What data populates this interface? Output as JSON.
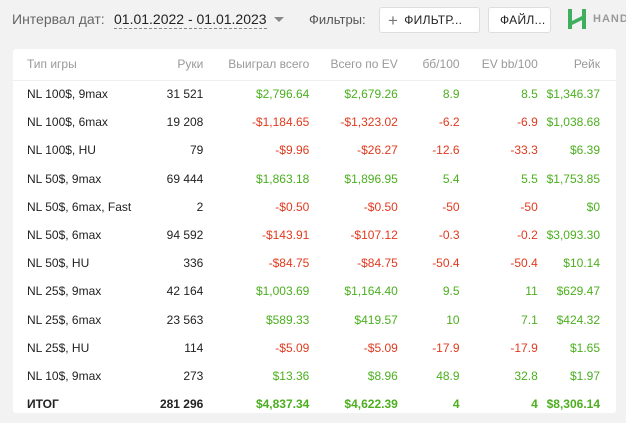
{
  "header": {
    "date_label": "Интервал дат:",
    "date_range": "01.01.2022 - 01.01.2023",
    "filters_label": "Фильтры:",
    "filter_button": "ФИЛЬТР...",
    "files_button": "ФАЙЛ...",
    "logo_text": "HAND",
    "logo_icon": "hand2note-logo-icon",
    "colors": {
      "positive": "#4caf1f",
      "negative": "#e03a1f"
    }
  },
  "table": {
    "columns": [
      "Тип игры",
      "Руки",
      "Выиграл всего",
      "Всего по EV",
      "бб/100",
      "EV bb/100",
      "Рейк"
    ],
    "rows": [
      {
        "game": "NL 100$, 9max",
        "hands": "31 521",
        "won": "$2,796.64",
        "ev": "$2,679.26",
        "bb100": "8.9",
        "evbb100": "8.5",
        "rake": "$1,346.37"
      },
      {
        "game": "NL 100$, 6max",
        "hands": "19 208",
        "won": "-$1,184.65",
        "ev": "-$1,323.02",
        "bb100": "-6.2",
        "evbb100": "-6.9",
        "rake": "$1,038.68"
      },
      {
        "game": "NL 100$, HU",
        "hands": "79",
        "won": "-$9.96",
        "ev": "-$26.27",
        "bb100": "-12.6",
        "evbb100": "-33.3",
        "rake": "$6.39"
      },
      {
        "game": "NL 50$, 9max",
        "hands": "69 444",
        "won": "$1,863.18",
        "ev": "$1,896.95",
        "bb100": "5.4",
        "evbb100": "5.5",
        "rake": "$1,753.85"
      },
      {
        "game": "NL 50$, 6max, Fast",
        "hands": "2",
        "won": "-$0.50",
        "ev": "-$0.50",
        "bb100": "-50",
        "evbb100": "-50",
        "rake": "$0"
      },
      {
        "game": "NL 50$, 6max",
        "hands": "94 592",
        "won": "-$143.91",
        "ev": "-$107.12",
        "bb100": "-0.3",
        "evbb100": "-0.2",
        "rake": "$3,093.30"
      },
      {
        "game": "NL 50$, HU",
        "hands": "336",
        "won": "-$84.75",
        "ev": "-$84.75",
        "bb100": "-50.4",
        "evbb100": "-50.4",
        "rake": "$10.14"
      },
      {
        "game": "NL 25$, 9max",
        "hands": "42 164",
        "won": "$1,003.69",
        "ev": "$1,164.40",
        "bb100": "9.5",
        "evbb100": "11",
        "rake": "$629.47"
      },
      {
        "game": "NL 25$, 6max",
        "hands": "23 563",
        "won": "$589.33",
        "ev": "$419.57",
        "bb100": "10",
        "evbb100": "7.1",
        "rake": "$424.32"
      },
      {
        "game": "NL 25$, HU",
        "hands": "114",
        "won": "-$5.09",
        "ev": "-$5.09",
        "bb100": "-17.9",
        "evbb100": "-17.9",
        "rake": "$1.65"
      },
      {
        "game": "NL 10$, 9max",
        "hands": "273",
        "won": "$13.36",
        "ev": "$8.96",
        "bb100": "48.9",
        "evbb100": "32.8",
        "rake": "$1.97"
      }
    ],
    "total": {
      "game": "ИТОГ",
      "hands": "281 296",
      "won": "$4,837.34",
      "ev": "$4,622.39",
      "bb100": "4",
      "evbb100": "4",
      "rake": "$8,306.14"
    }
  }
}
